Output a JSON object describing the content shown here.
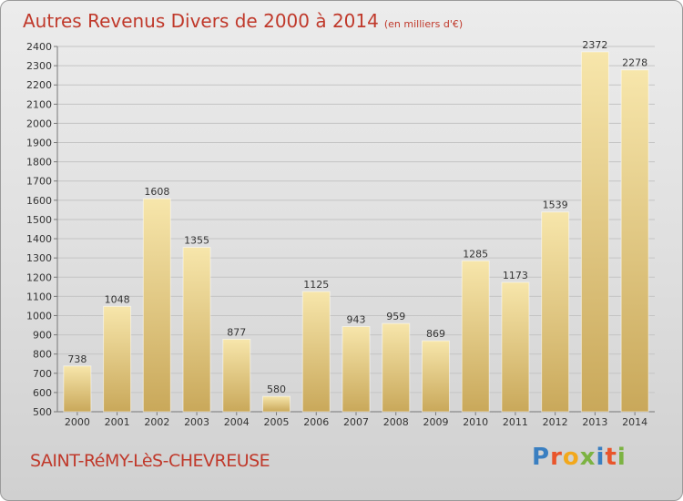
{
  "title": "Autres Revenus Divers de 2000 à 2014",
  "title_unit": "(en milliers d'€)",
  "city": "SAINT-RéMY-LèS-CHEVREUSE",
  "logo": {
    "text": "Proxiti",
    "colors": [
      "#3a7fc1",
      "#e9552b",
      "#f2a81c",
      "#7cb342",
      "#3a7fc1",
      "#e9552b",
      "#7cb342"
    ]
  },
  "colors": {
    "title": "#c0392b",
    "bar_light": "#f6e2a3",
    "bar_dark": "#c9a85a"
  },
  "chart_data": {
    "type": "bar",
    "categories": [
      "2000",
      "2001",
      "2002",
      "2003",
      "2004",
      "2005",
      "2006",
      "2007",
      "2008",
      "2009",
      "2010",
      "2011",
      "2012",
      "2013",
      "2014"
    ],
    "values": [
      738,
      1048,
      1608,
      1355,
      877,
      580,
      1125,
      943,
      959,
      869,
      1285,
      1173,
      1539,
      2372,
      2278
    ],
    "ylim": [
      500,
      2400
    ],
    "yticks": [
      500,
      600,
      700,
      800,
      900,
      1000,
      1100,
      1200,
      1300,
      1400,
      1500,
      1600,
      1700,
      1800,
      1900,
      2000,
      2100,
      2200,
      2300,
      2400
    ],
    "grid": true
  }
}
